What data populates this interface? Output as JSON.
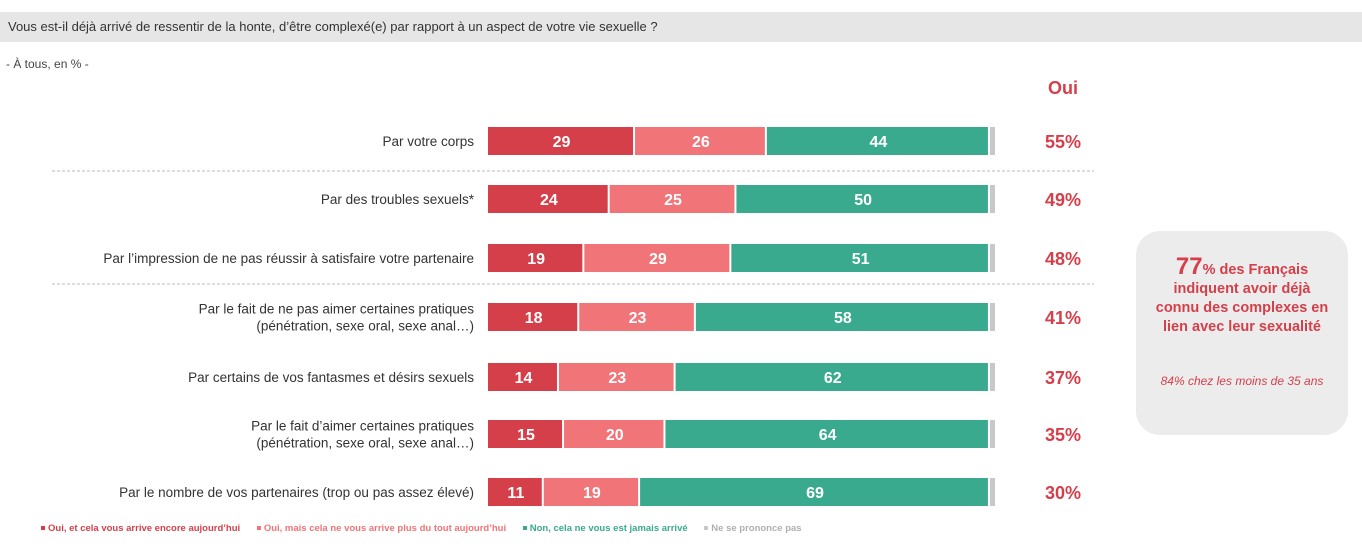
{
  "question": "Vous est-il déjà arrivé de ressentir de la honte, d’être complexé(e) par rapport à un aspect de votre vie sexuelle ?",
  "subtitle": "- À tous, en % -",
  "oui_header": "Oui",
  "colors": {
    "dark_red": "#d43f4a",
    "light_red": "#f07478",
    "green": "#3aaa8e",
    "grey": "#c8c8c8"
  },
  "callout": {
    "big_number": "77",
    "big_line1": "% des Français",
    "big_line2": "indiquent avoir déjà",
    "big_line3": "connu des complexes en",
    "big_line4": "lien avec leur sexualité",
    "small": "84% chez les moins de 35 ans"
  },
  "chart_data": {
    "type": "bar",
    "orientation": "horizontal",
    "stacked": true,
    "categories": [
      [
        "Par votre corps"
      ],
      [
        "Par des troubles sexuels*"
      ],
      [
        "Par l’impression de ne pas réussir à satisfaire votre partenaire"
      ],
      [
        "Par le fait de ne pas aimer certaines pratiques",
        "(pénétration, sexe oral, sexe anal…)"
      ],
      [
        "Par certains de vos fantasmes et désirs sexuels"
      ],
      [
        "Par le fait d’aimer certaines pratiques",
        "(pénétration, sexe oral, sexe anal…)"
      ],
      [
        "Par le nombre de vos partenaires (trop ou pas assez élevé)"
      ]
    ],
    "series": [
      {
        "name": "Oui, et cela vous arrive encore aujourd’hui",
        "values": [
          29,
          24,
          19,
          18,
          14,
          15,
          11
        ]
      },
      {
        "name": "Oui, mais cela ne vous arrive plus du tout aujourd’hui",
        "values": [
          26,
          25,
          29,
          23,
          23,
          20,
          19
        ]
      },
      {
        "name": "Non, cela ne vous est jamais arrivé",
        "values": [
          44,
          50,
          51,
          58,
          62,
          64,
          69
        ]
      },
      {
        "name": "Ne se prononce pas",
        "values": [
          1,
          1,
          1,
          1,
          1,
          1,
          1
        ]
      }
    ],
    "oui_totals": [
      "55%",
      "49%",
      "48%",
      "41%",
      "37%",
      "35%",
      "30%"
    ]
  }
}
